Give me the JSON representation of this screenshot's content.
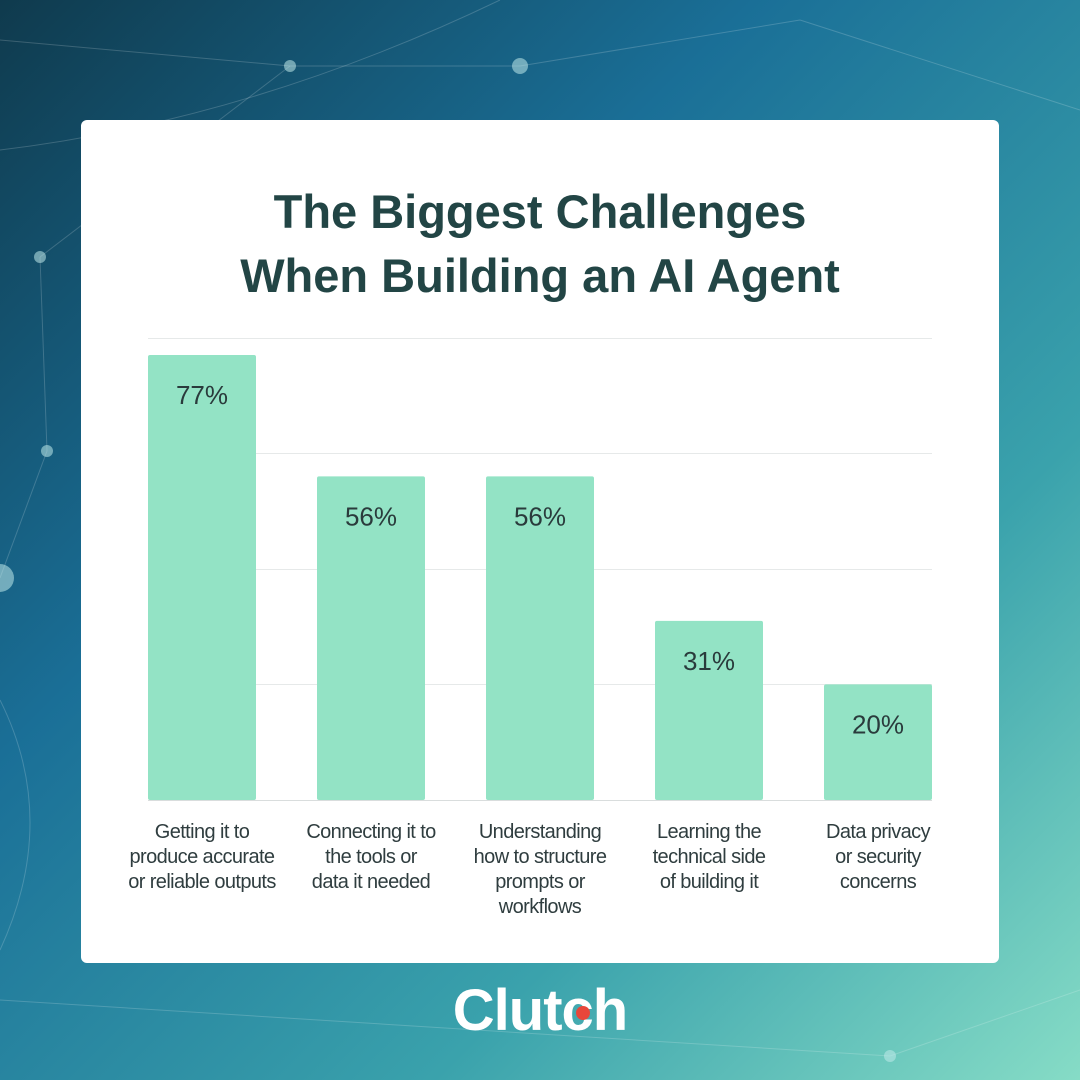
{
  "title": {
    "line1": "The Biggest Challenges",
    "line2": "When Building an AI Agent"
  },
  "brand": {
    "name": "Clutch",
    "accent": "#e8473a"
  },
  "colors": {
    "bar": "#93e3c5",
    "card": "#ffffff",
    "title": "#224545",
    "background_dark": "#124d6b",
    "background_light": "#7fd9c7"
  },
  "chart_data": {
    "type": "bar",
    "categories": [
      "Getting it to produce accurate or reliable outputs",
      "Connecting it to the tools or data it needed",
      "Understanding how to structure prompts or workflows",
      "Learning the technical side of building it",
      "Data privacy or security concerns"
    ],
    "category_lines": [
      [
        "Getting it to",
        "produce accurate",
        "or reliable outputs"
      ],
      [
        "Connecting it to",
        "the tools or",
        "data it needed"
      ],
      [
        "Understanding",
        "how to structure",
        "prompts or",
        "workflows"
      ],
      [
        "Learning the",
        "technical side",
        "of building it"
      ],
      [
        "Data privacy",
        "or security",
        "concerns"
      ]
    ],
    "values": [
      77,
      56,
      56,
      31,
      20
    ],
    "value_labels": [
      "77%",
      "56%",
      "56%",
      "31%",
      "20%"
    ],
    "ylim": [
      0,
      80
    ],
    "grid": true
  }
}
